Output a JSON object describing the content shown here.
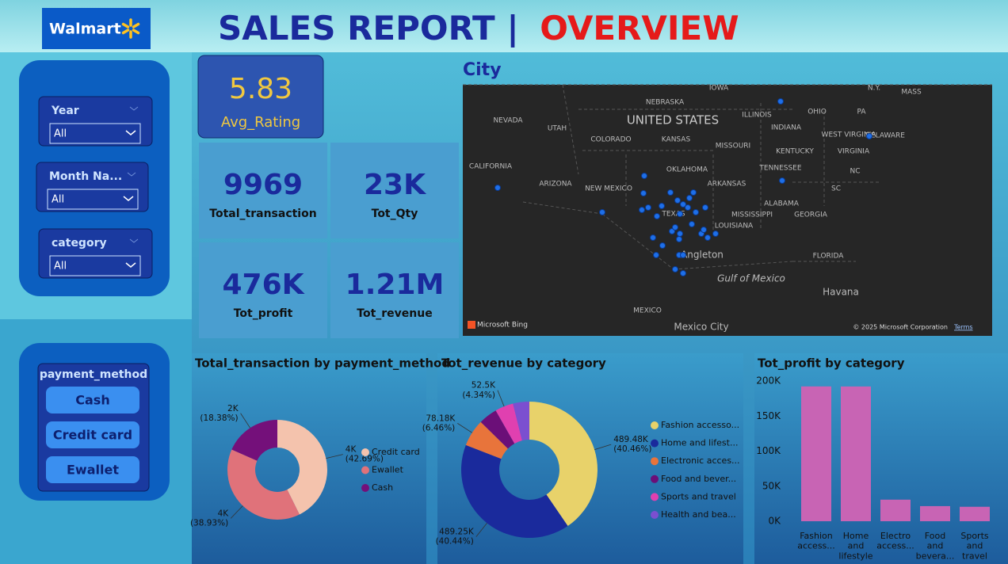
{
  "header": {
    "logo": "Walmart",
    "title_main": "SALES REPORT |",
    "title_accent": "OVERVIEW"
  },
  "filters": [
    {
      "label": "Year",
      "value": "All"
    },
    {
      "label": "Month Na...",
      "value": "All"
    },
    {
      "label": "category",
      "value": "All"
    }
  ],
  "payment_slicer": {
    "title": "payment_method",
    "options": [
      "Cash",
      "Credit card",
      "Ewallet"
    ]
  },
  "kpis": [
    {
      "value": "5.83",
      "label": "Avg_Rating"
    },
    {
      "value": "9969",
      "label": "Total_transaction"
    },
    {
      "value": "23K",
      "label": "Tot_Qty"
    },
    {
      "value": "476K",
      "label": "Tot_profit"
    },
    {
      "value": "1.21M",
      "label": "Tot_revenue"
    }
  ],
  "map": {
    "title": "City",
    "labels": [
      "NEVADA",
      "UTAH",
      "COLORADO",
      "NEBRASKA",
      "KANSAS",
      "OKLAHOMA",
      "ARIZONA",
      "NEW MEXICO",
      "TEXAS",
      "CALIFORNIA",
      "UNITED STATES",
      "IOWA",
      "ILLINOIS",
      "MISSOURI",
      "ARKANSAS",
      "TENNESSEE",
      "KENTUCKY",
      "INDIANA",
      "OHIO",
      "PA",
      "WEST VIRGINIA",
      "VIRGINIA",
      "NC",
      "SC",
      "GEORGIA",
      "ALABAMA",
      "MISSISSIPPI",
      "LOUISIANA",
      "FLORIDA",
      "DELAWARE",
      "N.Y.",
      "MASS",
      "MEXICO",
      "Mexico City",
      "Havana",
      "Gulf of Mexico",
      "Angleton"
    ],
    "attribution": "Microsoft Bing",
    "copyright": "© 2025 Microsoft Corporation",
    "terms": "Terms"
  },
  "chart_data": [
    {
      "type": "donut",
      "title": "Total_transaction by payment_method",
      "categories": [
        "Credit card",
        "Ewallet",
        "Cash"
      ],
      "values": [
        4256,
        3881,
        1832
      ],
      "value_labels": [
        "4K (42.69%)",
        "4K (38.93%)",
        "2K (18.38%)"
      ],
      "colors": [
        "#f4c3ad",
        "#e0727a",
        "#74107a"
      ]
    },
    {
      "type": "donut",
      "title": "Tot_revenue by category",
      "categories": [
        "Fashion accesso...",
        "Home and lifest...",
        "Electronic acces...",
        "Food and bever...",
        "Sports and travel",
        "Health and bea..."
      ],
      "values": [
        489480,
        489250,
        78180,
        53470,
        52500,
        46850
      ],
      "value_labels": [
        "489.48K (40.46%)",
        "489.25K (40.44%)",
        "78.18K (6.46%)",
        null,
        "52.5K (4.34%)",
        null
      ],
      "colors": [
        "#e8d26a",
        "#1a2a9c",
        "#e8743b",
        "#6b0f78",
        "#e040b0",
        "#7b4fd0"
      ]
    },
    {
      "type": "bar",
      "title": "Tot_profit by category",
      "categories": [
        "Fashion access...",
        "Home and lifestyle",
        "Electro access...",
        "Food and bevera...",
        "Sports and travel"
      ],
      "values": [
        192315,
        192214,
        30772,
        21553,
        20614
      ],
      "color": "#c864b4",
      "ylim": [
        0,
        200000
      ],
      "yticks": [
        {
          "value": 0,
          "label": "0K"
        },
        {
          "value": 50000,
          "label": "50K"
        },
        {
          "value": 100000,
          "label": "100K"
        },
        {
          "value": 150000,
          "label": "150K"
        },
        {
          "value": 200000,
          "label": "200K"
        }
      ]
    }
  ]
}
